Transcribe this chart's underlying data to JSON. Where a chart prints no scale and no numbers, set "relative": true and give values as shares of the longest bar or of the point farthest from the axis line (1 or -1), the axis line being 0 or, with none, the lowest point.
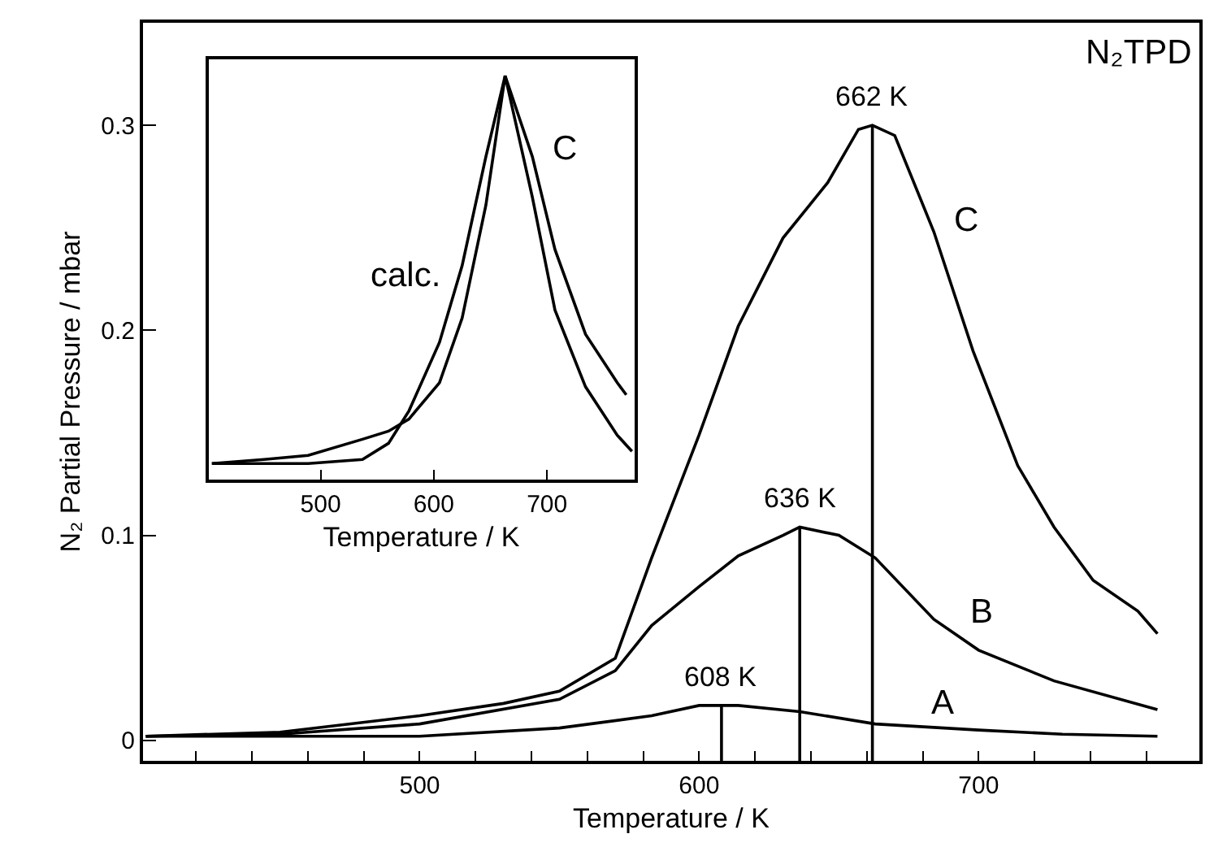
{
  "chart_data": [
    {
      "type": "line",
      "title": "N₂TPD",
      "xlabel": "Temperature / K",
      "ylabel": "N₂ Partial Pressure / mbar",
      "xlim": [
        401,
        779
      ],
      "ylim": [
        -0.01,
        0.35
      ],
      "xticks": [
        {
          "value": 420,
          "label": null
        },
        {
          "value": 440,
          "label": null
        },
        {
          "value": 460,
          "label": null
        },
        {
          "value": 480,
          "label": null
        },
        500,
        {
          "value": 520,
          "label": null
        },
        {
          "value": 540,
          "label": null
        },
        {
          "value": 560,
          "label": null
        },
        {
          "value": 580,
          "label": null
        },
        600,
        {
          "value": 620,
          "label": null
        },
        {
          "value": 640,
          "label": null
        },
        {
          "value": 660,
          "label": null
        },
        {
          "value": 680,
          "label": null
        },
        700,
        {
          "value": 720,
          "label": null
        },
        {
          "value": 740,
          "label": null
        },
        {
          "value": 760,
          "label": null
        }
      ],
      "yticks": [
        0,
        0.1,
        0.2,
        0.3
      ],
      "grid": false,
      "legend": false,
      "marker": "none",
      "line_style": "solid",
      "series": [
        {
          "name": "A",
          "color": "#000000",
          "x": [
            402,
            450,
            500,
            550,
            583,
            600,
            614,
            636,
            663,
            700,
            730,
            764
          ],
          "values": [
            0.002,
            0.002,
            0.002,
            0.006,
            0.012,
            0.017,
            0.017,
            0.014,
            0.008,
            0.005,
            0.003,
            0.002
          ]
        },
        {
          "name": "B",
          "color": "#000000",
          "x": [
            402,
            450,
            500,
            550,
            570,
            583,
            600,
            614,
            630,
            636,
            650,
            663,
            684,
            700,
            727,
            764
          ],
          "values": [
            0.002,
            0.003,
            0.008,
            0.02,
            0.034,
            0.056,
            0.075,
            0.09,
            0.1,
            0.104,
            0.1,
            0.089,
            0.059,
            0.044,
            0.029,
            0.015
          ]
        },
        {
          "name": "C",
          "color": "#000000",
          "x": [
            402,
            450,
            500,
            530,
            550,
            570,
            583,
            600,
            614,
            630,
            646,
            657,
            662,
            670,
            684,
            698,
            714,
            727,
            741,
            757,
            764
          ],
          "values": [
            0.002,
            0.004,
            0.012,
            0.018,
            0.024,
            0.04,
            0.089,
            0.149,
            0.202,
            0.245,
            0.272,
            0.298,
            0.3,
            0.295,
            0.248,
            0.19,
            0.134,
            0.104,
            0.078,
            0.063,
            0.052
          ]
        }
      ],
      "ref_lines": [
        {
          "axis": "x",
          "value": 608,
          "label": "608 K"
        },
        {
          "axis": "x",
          "value": 636,
          "label": "636 K"
        },
        {
          "axis": "x",
          "value": 662,
          "label": "662 K"
        }
      ]
    },
    {
      "type": "line",
      "xlabel": "Temperature / K",
      "relative": true,
      "xlim": [
        401,
        777
      ],
      "xticks": [
        500,
        600,
        700
      ],
      "tick_labels": "x",
      "grid": false,
      "legend": false,
      "marker": "none",
      "line_style": "solid",
      "series": [
        {
          "name": "C",
          "color": "#000000",
          "x": [
            404,
            450,
            489,
            537,
            560,
            578,
            605,
            625,
            646,
            663,
            687,
            707,
            734,
            762,
            770
          ],
          "values": [
            0.04,
            0.05,
            0.06,
            0.1,
            0.12,
            0.15,
            0.24,
            0.4,
            0.68,
            1.0,
            0.8,
            0.57,
            0.36,
            0.24,
            0.21
          ]
        },
        {
          "name": "calc.",
          "color": "#000000",
          "x": [
            404,
            489,
            537,
            560,
            578,
            605,
            625,
            646,
            663,
            687,
            707,
            734,
            762,
            775
          ],
          "values": [
            0.04,
            0.04,
            0.05,
            0.09,
            0.17,
            0.34,
            0.53,
            0.8,
            1.0,
            0.7,
            0.42,
            0.23,
            0.11,
            0.07
          ]
        }
      ]
    }
  ]
}
